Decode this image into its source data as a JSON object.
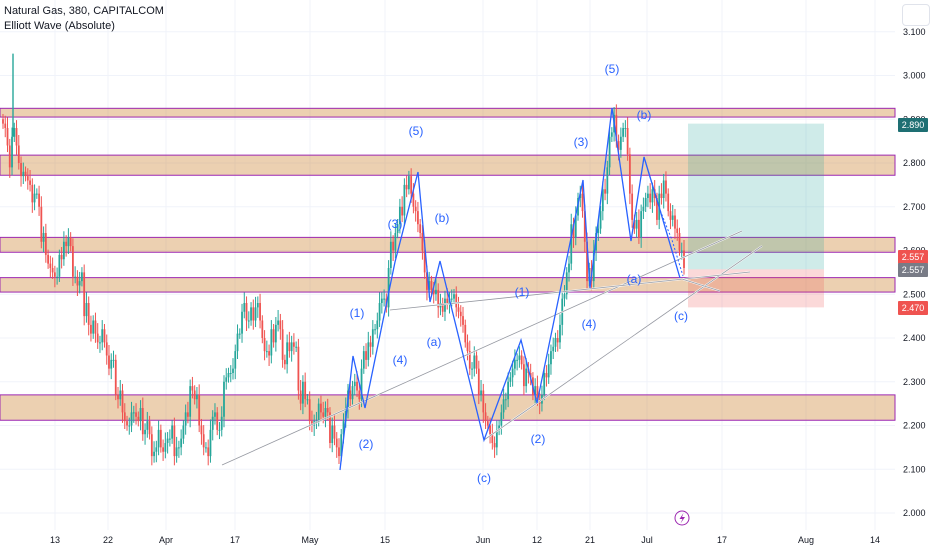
{
  "legend": {
    "symbol_line": "Natural Gas, 380, CAPITALCOM",
    "indicator_line": "Elliott Wave (Absolute)"
  },
  "icons": {
    "top_right": "window-icon",
    "bottom": "lightning-icon"
  },
  "colors": {
    "up": "#26a69a",
    "down": "#ef5350",
    "wave": "#2962ff",
    "zone_fill": "#c8791f",
    "zone_border": "#9c27b0",
    "profit_zone": "#26a69a",
    "loss_zone": "#ef5350",
    "target_label": "#1e6f73",
    "entry_label": "#ef5350",
    "last_label": "#787b86"
  },
  "chart_data": {
    "type": "candlestick",
    "price_axis": {
      "ticks": [
        "3.100",
        "3.000",
        "2.900",
        "2.800",
        "2.700",
        "2.600",
        "2.500",
        "2.400",
        "2.300",
        "2.200",
        "2.100",
        "2.000"
      ],
      "range": [
        1.97,
        3.15
      ]
    },
    "time_axis": {
      "ticks": [
        "13",
        "22",
        "Apr",
        "17",
        "May",
        "15",
        "Jun",
        "12",
        "21",
        "Jul",
        "17",
        "Aug",
        "14"
      ]
    },
    "price_labels": [
      {
        "text": "2.890",
        "kind": "target"
      },
      {
        "text": "2.557",
        "kind": "entry"
      },
      {
        "text": "2.557",
        "kind": "last"
      },
      {
        "text": "2.470",
        "kind": "stop"
      }
    ],
    "zones": [
      {
        "top": 2.925,
        "bottom": 2.905
      },
      {
        "top": 2.818,
        "bottom": 2.772
      },
      {
        "top": 2.63,
        "bottom": 2.596
      },
      {
        "top": 2.538,
        "bottom": 2.505
      },
      {
        "top": 2.27,
        "bottom": 2.212
      }
    ],
    "position": {
      "target": 2.89,
      "entry": 2.557,
      "stop": 2.47
    },
    "wave_labels": [
      "(5)",
      "(5)",
      "(b)",
      "(3)",
      "(3)",
      "(b)",
      "(1)",
      "(1)",
      "(a)",
      "(4)",
      "(4)",
      "(a)",
      "(c)",
      "(2)",
      "(2)",
      "(c)"
    ],
    "series": [
      {
        "name": "candles",
        "values": [
          2.89,
          2.88,
          2.84,
          2.79,
          2.86,
          2.88,
          2.84,
          2.8,
          2.77,
          2.78,
          2.77,
          2.76,
          2.75,
          2.71,
          2.73,
          2.73,
          2.7,
          2.62,
          2.64,
          2.59,
          2.57,
          2.56,
          2.55,
          2.54,
          2.54,
          2.59,
          2.58,
          2.62,
          2.61,
          2.63,
          2.61,
          2.54,
          2.54,
          2.52,
          2.53,
          2.55,
          2.45,
          2.48,
          2.43,
          2.41,
          2.44,
          2.41,
          2.39,
          2.39,
          2.42,
          2.39,
          2.36,
          2.33,
          2.35,
          2.35,
          2.27,
          2.26,
          2.28,
          2.23,
          2.21,
          2.2,
          2.2,
          2.23,
          2.23,
          2.22,
          2.21,
          2.24,
          2.18,
          2.19,
          2.21,
          2.18,
          2.13,
          2.14,
          2.15,
          2.19,
          2.15,
          2.14,
          2.16,
          2.17,
          2.17,
          2.2,
          2.13,
          2.15,
          2.15,
          2.17,
          2.2,
          2.23,
          2.22,
          2.29,
          2.28,
          2.26,
          2.27,
          2.2,
          2.18,
          2.15,
          2.15,
          2.13,
          2.19,
          2.22,
          2.23,
          2.19,
          2.19,
          2.22,
          2.3,
          2.31,
          2.32,
          2.32,
          2.33,
          2.37,
          2.41,
          2.41,
          2.46,
          2.48,
          2.44,
          2.44,
          2.47,
          2.44,
          2.47,
          2.48,
          2.44,
          2.4,
          2.37,
          2.37,
          2.36,
          2.42,
          2.39,
          2.43,
          2.44,
          2.42,
          2.35,
          2.34,
          2.39,
          2.37,
          2.39,
          2.38,
          2.38,
          2.28,
          2.25,
          2.3,
          2.26,
          2.26,
          2.21,
          2.2,
          2.21,
          2.21,
          2.25,
          2.23,
          2.22,
          2.24,
          2.23,
          2.16,
          2.2,
          2.17,
          2.15,
          2.13,
          2.18,
          2.21,
          2.24,
          2.28,
          2.26,
          2.29,
          2.3,
          2.28,
          2.26,
          2.33,
          2.37,
          2.35,
          2.39,
          2.38,
          2.42,
          2.42,
          2.44,
          2.48,
          2.49,
          2.49,
          2.47,
          2.56,
          2.62,
          2.6,
          2.64,
          2.66,
          2.7,
          2.68,
          2.75,
          2.74,
          2.77,
          2.73,
          2.7,
          2.69,
          2.66,
          2.64,
          2.6,
          2.55,
          2.51,
          2.53,
          2.51,
          2.5,
          2.51,
          2.47,
          2.48,
          2.46,
          2.49,
          2.48,
          2.49,
          2.49,
          2.5,
          2.47,
          2.46,
          2.45,
          2.43,
          2.39,
          2.37,
          2.33,
          2.33,
          2.36,
          2.33,
          2.27,
          2.28,
          2.23,
          2.21,
          2.2,
          2.18,
          2.16,
          2.15,
          2.19,
          2.2,
          2.23,
          2.26,
          2.26,
          2.3,
          2.31,
          2.33,
          2.35,
          2.35,
          2.36,
          2.34,
          2.29,
          2.33,
          2.32,
          2.31,
          2.27,
          2.29,
          2.26,
          2.25,
          2.27,
          2.32,
          2.31,
          2.34,
          2.37,
          2.38,
          2.4,
          2.39,
          2.43,
          2.49,
          2.5,
          2.55,
          2.57,
          2.66,
          2.63,
          2.68,
          2.72,
          2.73,
          2.69,
          2.62,
          2.53,
          2.56,
          2.53,
          2.6,
          2.64,
          2.65,
          2.69,
          2.74,
          2.73,
          2.79,
          2.86,
          2.87,
          2.91,
          2.85,
          2.83,
          2.86,
          2.88,
          2.88,
          2.82,
          2.73,
          2.67,
          2.65,
          2.67,
          2.63,
          2.69,
          2.7,
          2.72,
          2.73,
          2.71,
          2.74,
          2.72,
          2.67,
          2.73,
          2.72,
          2.76,
          2.73,
          2.69,
          2.67,
          2.68,
          2.65,
          2.64,
          2.6,
          2.6,
          2.56
        ]
      }
    ]
  }
}
